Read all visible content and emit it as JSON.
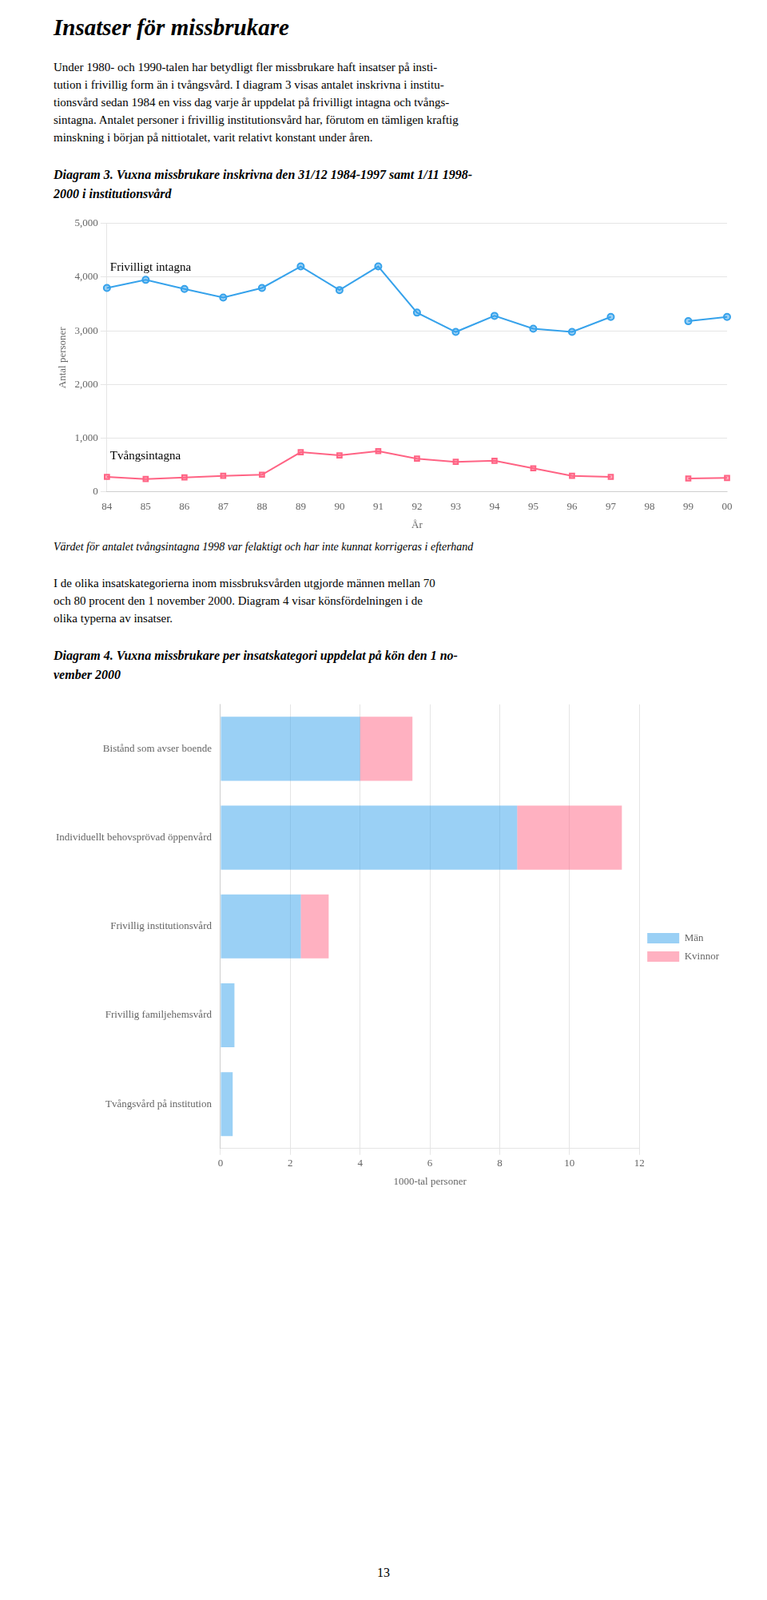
{
  "title": "Insatser för missbrukare",
  "paragraphs": [
    [
      "Under 1980- och 1990-talen har betydligt fler missbrukare haft insatser på insti-",
      "tution i frivillig form än i tvångsvård. I diagram 3 visas antalet inskrivna i institu-",
      "tionsvård sedan 1984 en viss dag varje år uppdelat på frivilligt intagna och tvångs-",
      "sintagna. Antalet personer i frivillig institutionsvård har, förutom en tämligen kraftig",
      "minskning i början på nittiotalet, varit relativt konstant under åren."
    ],
    [
      "I de olika insatskategorierna inom missbruksvården utgjorde männen mellan 70",
      "och 80 procent den 1 november 2000. Diagram 4 visar könsfördelningen i de",
      "olika typerna av insatser."
    ]
  ],
  "page_number": "13",
  "chart_data": [
    {
      "type": "line",
      "title": [
        "Diagram 3. Vuxna missbrukare inskrivna den 31/12 1984-1997 samt 1/11 1998-",
        "2000 i institutionsvård"
      ],
      "xlabel": "År",
      "ylabel": "Antal personer",
      "categories": [
        "84",
        "85",
        "86",
        "87",
        "88",
        "89",
        "90",
        "91",
        "92",
        "93",
        "94",
        "95",
        "96",
        "97",
        "98",
        "99",
        "00"
      ],
      "series": [
        {
          "name": "Frivilligt intagna",
          "marker": "circle",
          "values": [
            3800,
            3950,
            3780,
            3620,
            3800,
            4200,
            3760,
            4200,
            3340,
            2980,
            3280,
            3040,
            2980,
            3260,
            null,
            3180,
            3260
          ]
        },
        {
          "name": "Tvångsintagna",
          "marker": "square",
          "values": [
            280,
            240,
            270,
            300,
            320,
            740,
            680,
            760,
            620,
            560,
            580,
            440,
            300,
            280,
            null,
            250,
            260
          ]
        }
      ],
      "ylim": [
        0,
        5000
      ],
      "yticks": [
        0,
        1000,
        2000,
        3000,
        4000,
        5000
      ],
      "grid": "y",
      "annotations": [
        "Värdet för antalet tvångsintagna 1998 var felaktigt och har inte kunnat korrigeras i efterhand"
      ]
    },
    {
      "type": "bar",
      "orientation": "horizontal",
      "stacked": true,
      "title": [
        "Diagram 4. Vuxna missbrukare per insatskategori uppdelat på kön den 1 no-",
        "vember 2000"
      ],
      "xlabel": "1000-tal personer",
      "categories": [
        "Bistånd som avser boende",
        "Individuellt behovsprövad öppenvård",
        "Frivillig institutionsvård",
        "Frivillig familjehemsvård",
        "Tvångsvård på institution"
      ],
      "series": [
        {
          "name": "Män",
          "values": [
            4.0,
            8.5,
            2.3,
            0.4,
            0.35
          ]
        },
        {
          "name": "Kvinnor",
          "values": [
            1.5,
            3.0,
            0.8,
            0.0,
            0.0
          ]
        }
      ],
      "xlim": [
        0,
        12
      ],
      "xticks": [
        0,
        2,
        4,
        6,
        8,
        10,
        12
      ],
      "grid": "x",
      "legend": "right"
    }
  ]
}
